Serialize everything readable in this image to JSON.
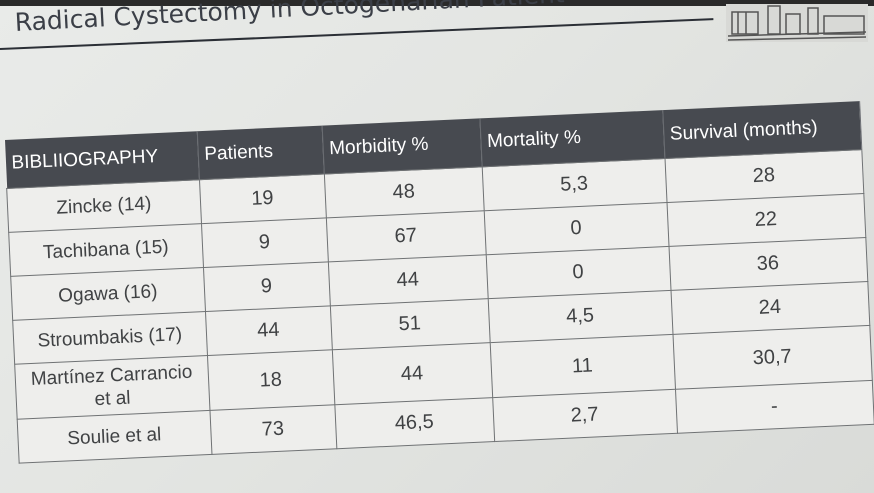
{
  "slide": {
    "title": "Radical Cystectomy in Octogenarian Patient",
    "logo_icon": "building-illustration-icon"
  },
  "table": {
    "headers": [
      "BIBLIIOGRAPHY",
      "Patients",
      "Morbidity %",
      "Mortality %",
      "Survival (months)"
    ],
    "rows": [
      [
        "Zincke (14)",
        "19",
        "48",
        "5,3",
        "28"
      ],
      [
        "Tachibana (15)",
        "9",
        "67",
        "0",
        "22"
      ],
      [
        "Ogawa (16)",
        "9",
        "44",
        "0",
        "36"
      ],
      [
        "Stroumbakis (17)",
        "44",
        "51",
        "4,5",
        "24"
      ],
      [
        "Martínez Carrancio et al",
        "18",
        "44",
        "11",
        "30,7"
      ],
      [
        "Soulie et al",
        "73",
        "46,5",
        "2,7",
        "-"
      ]
    ]
  },
  "colors": {
    "header_bg": "#474a50",
    "text": "#404244",
    "slide_bg": "#e6e8e5"
  }
}
